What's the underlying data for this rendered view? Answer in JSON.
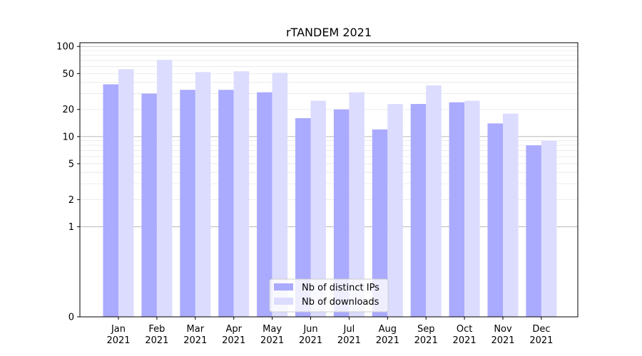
{
  "chart_data": {
    "type": "bar",
    "title": "rTANDEM 2021",
    "xlabel": "",
    "ylabel": "",
    "yscale": "symlog",
    "ylim": [
      0,
      110
    ],
    "grid": "y-major-and-minor",
    "legend_position": "bottom-center",
    "categories": [
      [
        "Jan",
        "2021"
      ],
      [
        "Feb",
        "2021"
      ],
      [
        "Mar",
        "2021"
      ],
      [
        "Apr",
        "2021"
      ],
      [
        "May",
        "2021"
      ],
      [
        "Jun",
        "2021"
      ],
      [
        "Jul",
        "2021"
      ],
      [
        "Aug",
        "2021"
      ],
      [
        "Sep",
        "2021"
      ],
      [
        "Oct",
        "2021"
      ],
      [
        "Nov",
        "2021"
      ],
      [
        "Dec",
        "2021"
      ]
    ],
    "y_ticks": [
      {
        "value": 0,
        "label": "0"
      },
      {
        "value": 1,
        "label": "1"
      },
      {
        "value": 2,
        "label": "2"
      },
      {
        "value": 5,
        "label": "5"
      },
      {
        "value": 10,
        "label": "10"
      },
      {
        "value": 20,
        "label": "20"
      },
      {
        "value": 50,
        "label": "50"
      },
      {
        "value": 100,
        "label": "100"
      }
    ],
    "series": [
      {
        "name": "Nb of distinct IPs",
        "color": "#aaaaff",
        "values": [
          38,
          30,
          33,
          33,
          31,
          16,
          20,
          12,
          23,
          24,
          14,
          8
        ]
      },
      {
        "name": "Nb of downloads",
        "color": "#dcdcff",
        "values": [
          56,
          71,
          52,
          53,
          51,
          25,
          31,
          23,
          37,
          25,
          18,
          9
        ]
      }
    ]
  }
}
